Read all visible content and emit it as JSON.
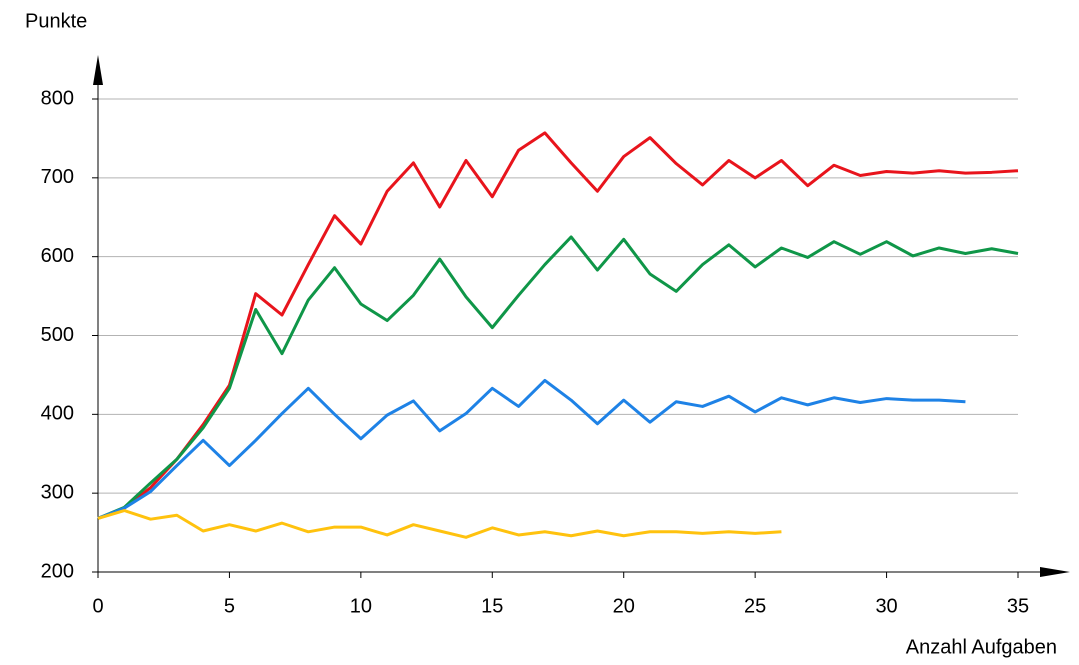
{
  "chart_data": {
    "type": "line",
    "ylabel": "Punkte",
    "xlabel": "Anzahl Aufgaben",
    "x": [
      0,
      1,
      2,
      3,
      4,
      5,
      6,
      7,
      8,
      9,
      10,
      11,
      12,
      13,
      14,
      15,
      16,
      17,
      18,
      19,
      20,
      21,
      22,
      23,
      24,
      25,
      26,
      27,
      28,
      29,
      30,
      31,
      32,
      33,
      34,
      35
    ],
    "series": [
      {
        "color": "#e8141c",
        "values": [
          268,
          281,
          307,
          343,
          387,
          437,
          553,
          526,
          590,
          652,
          616,
          683,
          719,
          663,
          722,
          676,
          735,
          757,
          719,
          683,
          727,
          751,
          718,
          691,
          722,
          700,
          722,
          690,
          716,
          703,
          708,
          706,
          709,
          706,
          707,
          709
        ]
      },
      {
        "color": "#0f9648",
        "values": [
          268,
          282,
          313,
          343,
          383,
          433,
          533,
          477,
          545,
          586,
          540,
          519,
          551,
          597,
          549,
          510,
          551,
          590,
          625,
          583,
          622,
          578,
          556,
          590,
          615,
          587,
          611,
          599,
          619,
          603,
          619,
          601,
          611,
          604,
          610,
          604
        ]
      },
      {
        "color": "#1e82e6",
        "values": [
          268,
          281,
          302,
          335,
          367,
          335,
          367,
          401,
          433,
          400,
          369,
          399,
          417,
          379,
          401,
          433,
          410,
          443,
          418,
          388,
          418,
          390,
          416,
          410,
          423,
          403,
          421,
          412,
          421,
          415,
          420,
          418,
          418,
          416,
          null,
          null
        ]
      },
      {
        "color": "#ffc20e",
        "values": [
          268,
          278,
          267,
          272,
          252,
          260,
          252,
          262,
          251,
          257,
          257,
          247,
          260,
          252,
          244,
          256,
          247,
          251,
          246,
          252,
          246,
          251,
          251,
          249,
          251,
          249,
          251,
          null,
          null,
          null,
          null,
          null,
          null,
          null,
          null,
          null
        ]
      }
    ],
    "xlim": [
      0,
      35
    ],
    "xticks": [
      0,
      5,
      10,
      15,
      20,
      25,
      30,
      35
    ],
    "ylim": [
      200,
      800
    ],
    "yticks": [
      200,
      300,
      400,
      500,
      600,
      700,
      800
    ],
    "grid": true
  }
}
